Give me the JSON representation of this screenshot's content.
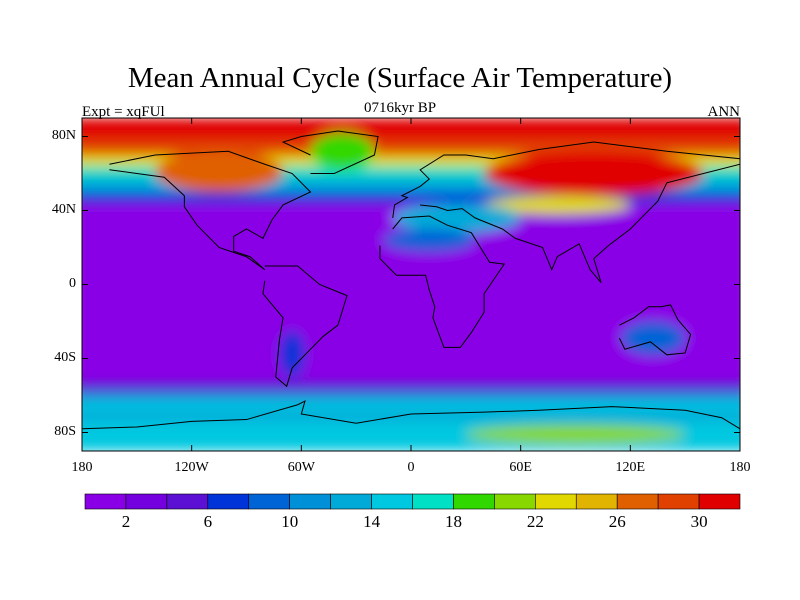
{
  "title": "Mean Annual Cycle (Surface Air Temperature)",
  "subtitle": "0716kyr BP",
  "left_label": "Expt = xqFUl",
  "right_label": "ANN",
  "chart_data": {
    "type": "heatmap",
    "projection": "cylindrical equidistant",
    "lat_ticks": [
      {
        "v": 80,
        "label": "80N"
      },
      {
        "v": 40,
        "label": "40N"
      },
      {
        "v": 0,
        "label": "0"
      },
      {
        "v": -40,
        "label": "40S"
      },
      {
        "v": -80,
        "label": "80S"
      }
    ],
    "lon_ticks": [
      {
        "v": -180,
        "label": "180"
      },
      {
        "v": -120,
        "label": "120W"
      },
      {
        "v": -60,
        "label": "60W"
      },
      {
        "v": 0,
        "label": "0"
      },
      {
        "v": 60,
        "label": "60E"
      },
      {
        "v": 120,
        "label": "120E"
      },
      {
        "v": 180,
        "label": "180"
      }
    ],
    "levels": [
      0,
      2,
      4,
      6,
      8,
      10,
      12,
      14,
      16,
      18,
      20,
      22,
      24,
      26,
      28,
      30,
      32
    ],
    "colorbar_labels": [
      "2",
      "6",
      "10",
      "14",
      "18",
      "22",
      "26",
      "30"
    ],
    "colors": [
      "#8a00e6",
      "#7400e0",
      "#5c10d4",
      "#0033d8",
      "#0063d6",
      "#0090d8",
      "#00aad8",
      "#00c8e0",
      "#00e0c4",
      "#30d800",
      "#88d800",
      "#e0d800",
      "#e0b400",
      "#e06000",
      "#e04000",
      "#e00000"
    ],
    "zonal_bands": [
      {
        "lat": [
          90,
          78
        ],
        "level": 15
      },
      {
        "lat": [
          78,
          70
        ],
        "level": 14
      },
      {
        "lat": [
          70,
          64
        ],
        "level": 11
      },
      {
        "lat": [
          64,
          58
        ],
        "level": 8
      },
      {
        "lat": [
          58,
          50
        ],
        "level": 6
      },
      {
        "lat": [
          50,
          44
        ],
        "level": 3
      },
      {
        "lat": [
          44,
          -52
        ],
        "level": 0
      },
      {
        "lat": [
          -52,
          -58
        ],
        "level": 2
      },
      {
        "lat": [
          -58,
          -63
        ],
        "level": 5
      },
      {
        "lat": [
          -63,
          -68
        ],
        "level": 7
      },
      {
        "lat": [
          -68,
          -74
        ],
        "level": 6
      },
      {
        "lat": [
          -74,
          -90
        ],
        "level": 7
      }
    ],
    "regions": [
      {
        "name": "siberia",
        "lon": [
          40,
          160
        ],
        "lat": [
          72,
          48
        ],
        "level": 15
      },
      {
        "name": "canada",
        "lon": [
          -140,
          -70
        ],
        "lat": [
          72,
          50
        ],
        "level": 13
      },
      {
        "name": "greenland",
        "lon": [
          -55,
          -20
        ],
        "lat": [
          82,
          62
        ],
        "level": 9
      },
      {
        "name": "central-asia",
        "lon": [
          40,
          120
        ],
        "lat": [
          48,
          38
        ],
        "level": 11
      },
      {
        "name": "mediterranean",
        "lon": [
          -10,
          60
        ],
        "lat": [
          44,
          28
        ],
        "level": 6
      },
      {
        "name": "sahara",
        "lon": [
          -15,
          35
        ],
        "lat": [
          30,
          18
        ],
        "level": 4
      },
      {
        "name": "east-antarctica",
        "lon": [
          30,
          150
        ],
        "lat": [
          -76,
          -86
        ],
        "level": 10
      },
      {
        "name": "australia",
        "lon": [
          115,
          150
        ],
        "lat": [
          -20,
          -38
        ],
        "level": 4
      },
      {
        "name": "patagonia",
        "lon": [
          -72,
          -58
        ],
        "lat": [
          -25,
          -50
        ],
        "level": 3
      }
    ]
  }
}
